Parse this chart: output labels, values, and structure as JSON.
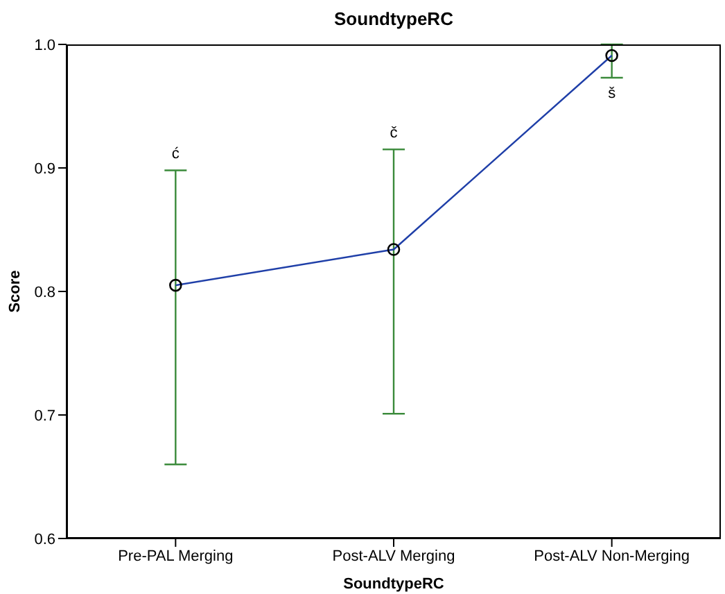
{
  "chart_data": {
    "type": "line",
    "title": "SoundtypeRC",
    "xlabel": "SoundtypeRC",
    "ylabel": "Score",
    "categories": [
      "Pre-PAL Merging",
      "Post-ALV Merging",
      "Post-ALV Non-Merging"
    ],
    "series": [
      {
        "color": "#1f3fa8",
        "values": [
          0.805,
          0.834,
          0.991
        ],
        "errors": [
          [
            0.66,
            0.898
          ],
          [
            0.701,
            0.915
          ],
          [
            0.973,
            1.0
          ]
        ]
      }
    ],
    "ylim": [
      0.6,
      1.0
    ],
    "yticks": [
      0.6,
      0.7,
      0.8,
      0.9,
      {
        "value": 1.0,
        "label": "1.0"
      }
    ],
    "grid": false,
    "legend": false,
    "marker": "circle",
    "line_style": "solid",
    "annotations": [
      "ć",
      "č",
      "š"
    ]
  }
}
